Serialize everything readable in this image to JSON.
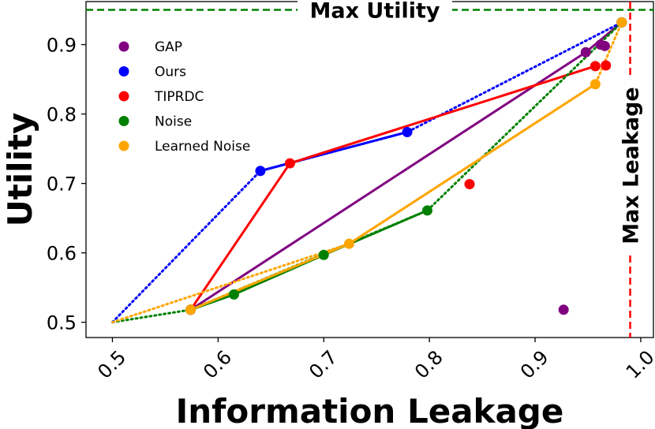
{
  "chart_data": {
    "type": "scatter",
    "title": "",
    "xlabel": "Information Leakage",
    "ylabel": "Utility",
    "xlim": [
      0.475,
      1.012
    ],
    "ylim": [
      0.478,
      0.962
    ],
    "xticks": [
      0.5,
      0.6,
      0.7,
      0.8,
      0.9,
      1.0
    ],
    "xtick_labels": [
      "0.5",
      "0.6",
      "0.7",
      "0.8",
      "0.9",
      "1.0"
    ],
    "yticks": [
      0.5,
      0.6,
      0.7,
      0.8,
      0.9
    ],
    "ytick_labels": [
      "0.5",
      "0.6",
      "0.7",
      "0.8",
      "0.9"
    ],
    "grid": false,
    "legend_position": "top-left",
    "reference_lines": [
      {
        "orientation": "horizontal",
        "value": 0.95,
        "label": "Max Utility",
        "color": "#008000"
      },
      {
        "orientation": "vertical",
        "value": 0.99,
        "label": "Max Leakage",
        "color": "#ff0000"
      }
    ],
    "series": [
      {
        "name": "GAP",
        "color": "#800080",
        "points": [
          [
            0.574,
            0.518
          ],
          [
            0.948,
            0.889
          ],
          [
            0.962,
            0.9
          ],
          [
            0.966,
            0.898
          ],
          [
            0.982,
            0.932
          ],
          [
            0.927,
            0.518
          ]
        ],
        "solid_path": [
          [
            0.574,
            0.518
          ],
          [
            0.948,
            0.889
          ],
          [
            0.982,
            0.932
          ]
        ],
        "dotted_path": []
      },
      {
        "name": "Ours",
        "color": "#0000ff",
        "points": [
          [
            0.64,
            0.718
          ],
          [
            0.779,
            0.774
          ],
          [
            0.982,
            0.932
          ]
        ],
        "solid_path": [
          [
            0.64,
            0.718
          ],
          [
            0.779,
            0.774
          ]
        ],
        "dotted_path": [
          [
            0.5,
            0.5
          ],
          [
            0.64,
            0.718
          ],
          [
            0.779,
            0.774
          ],
          [
            0.982,
            0.932
          ]
        ]
      },
      {
        "name": "TIPRDC",
        "color": "#ff0000",
        "points": [
          [
            0.574,
            0.518
          ],
          [
            0.668,
            0.729
          ],
          [
            0.838,
            0.699
          ],
          [
            0.957,
            0.869
          ],
          [
            0.967,
            0.87
          ]
        ],
        "solid_path": [
          [
            0.574,
            0.518
          ],
          [
            0.668,
            0.729
          ],
          [
            0.957,
            0.869
          ]
        ],
        "dotted_path": []
      },
      {
        "name": "Noise",
        "color": "#008000",
        "points": [
          [
            0.574,
            0.518
          ],
          [
            0.615,
            0.54
          ],
          [
            0.7,
            0.597
          ],
          [
            0.798,
            0.661
          ],
          [
            0.982,
            0.932
          ]
        ],
        "solid_path": [
          [
            0.574,
            0.518
          ],
          [
            0.615,
            0.54
          ],
          [
            0.7,
            0.597
          ],
          [
            0.798,
            0.661
          ]
        ],
        "dotted_path": [
          [
            0.5,
            0.5
          ],
          [
            0.574,
            0.518
          ],
          [
            0.798,
            0.661
          ],
          [
            0.982,
            0.932
          ]
        ]
      },
      {
        "name": "Learned Noise",
        "color": "#ffa500",
        "points": [
          [
            0.574,
            0.518
          ],
          [
            0.724,
            0.613
          ],
          [
            0.957,
            0.843
          ],
          [
            0.982,
            0.932
          ]
        ],
        "solid_path": [
          [
            0.574,
            0.518
          ],
          [
            0.724,
            0.613
          ],
          [
            0.957,
            0.843
          ]
        ],
        "dotted_path": [
          [
            0.5,
            0.5
          ],
          [
            0.724,
            0.613
          ],
          [
            0.957,
            0.843
          ],
          [
            0.982,
            0.932
          ]
        ]
      }
    ]
  }
}
